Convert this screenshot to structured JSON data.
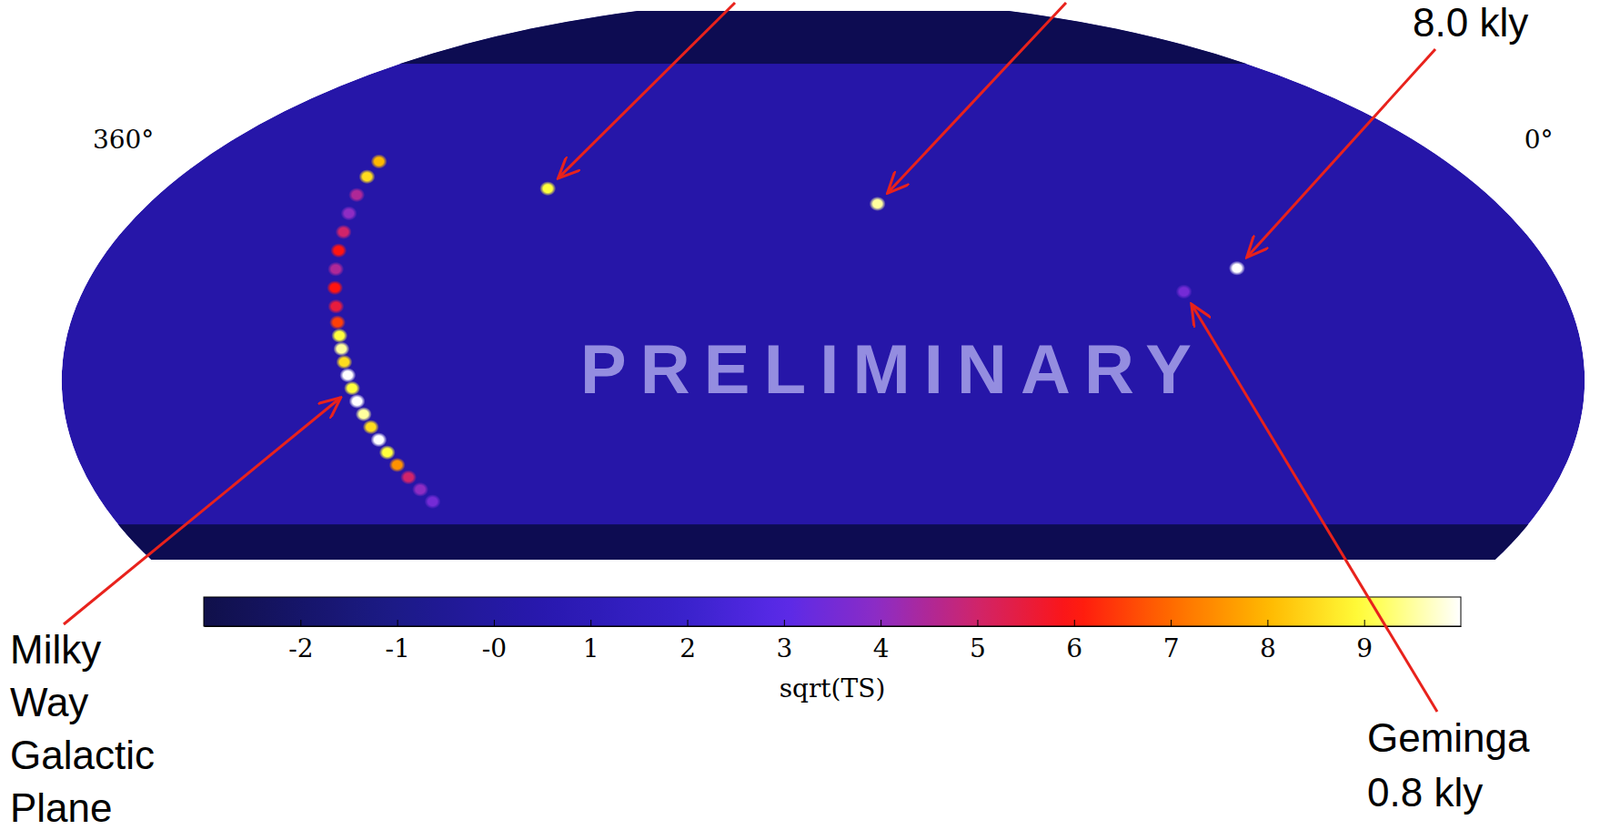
{
  "chart_data": {
    "type": "skymap",
    "watermark": "PRELIMINARY",
    "x": [
      253.5,
      166.1,
      83.6,
      98.5,
      307.8,
      306.0,
      303.5,
      301.0,
      298.5,
      296.5,
      294.5,
      292.5,
      290.5,
      289.0,
      287.8,
      286.8,
      285.8,
      284.8,
      283.8,
      282.8,
      281.6,
      280.4,
      279.2,
      278.0,
      276.6,
      275.0,
      273.4,
      271.8
    ],
    "y": [
      39.8,
      38.2,
      22.0,
      17.8,
      41.5,
      38.5,
      35.0,
      31.5,
      28.0,
      24.5,
      21.0,
      17.5,
      14.0,
      11.0,
      8.5,
      6.0,
      3.5,
      1.0,
      -1.5,
      -4.0,
      -6.5,
      -9.0,
      -11.5,
      -14.0,
      -16.5,
      -19.0,
      -21.5,
      -24.0
    ],
    "values": [
      9.0,
      9.5,
      10.0,
      3.5,
      8.0,
      8.5,
      4.5,
      4.0,
      5.0,
      6.0,
      4.5,
      6.0,
      5.5,
      6.5,
      9.0,
      9.5,
      8.5,
      10.0,
      9.0,
      10.0,
      9.5,
      8.5,
      10.0,
      9.0,
      7.5,
      5.0,
      4.0,
      3.5
    ],
    "xlim": [
      360,
      0
    ],
    "xticks": [
      {
        "value": 360,
        "label": "360°"
      },
      {
        "value": 0,
        "label": "0°"
      }
    ],
    "ylim": [
      -31,
      72
    ],
    "tick_labels": "x",
    "grid": false,
    "colorbar": {
      "range": [
        -3,
        10
      ],
      "ticks": [
        -2,
        -1,
        {
          "value": 0,
          "label": "-0"
        },
        1,
        2,
        3,
        4,
        5,
        6,
        7,
        8,
        9
      ],
      "label": "sqrt(TS)"
    },
    "annotations": [
      {
        "lines": [
          "Milky",
          "Way",
          "Galactic",
          "Plane"
        ]
      },
      {
        "lines": [
          "Geminga",
          "0.8 kly"
        ]
      },
      {
        "lines": [
          "8.0 kly"
        ]
      }
    ]
  }
}
